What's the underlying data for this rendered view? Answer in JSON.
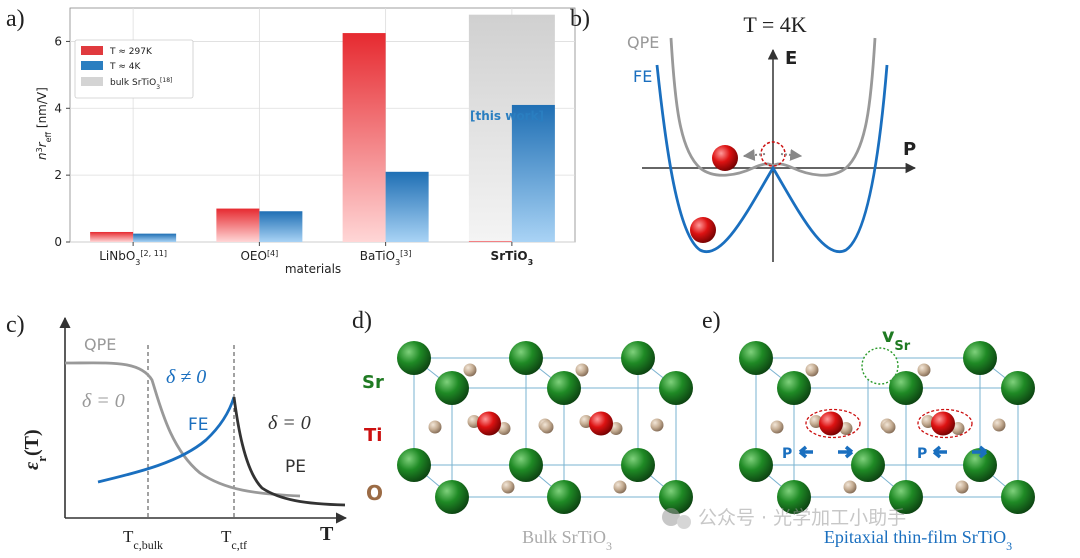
{
  "colors": {
    "red": "#e8222c",
    "blue": "#1f77c4",
    "gray": "#999999",
    "dark": "#333333",
    "sr_green": "#1f7a22",
    "ti_red": "#cc1010",
    "o_brown": "#9b6b45",
    "lattice_line": "#7ab3d0",
    "bar_red": "#e03a3e",
    "bar_blue": "#2a7ec0",
    "bar_gray": "#d4d4d4",
    "this_work": "#2a7ec0"
  },
  "panel_a": {
    "letter": "a)",
    "chart_data": {
      "type": "bar",
      "categories": [
        "LiNbO3[2,11]",
        "OEO[4]",
        "BaTiO3[3]",
        "SrTiO3"
      ],
      "category_labels": [
        {
          "base": "LiNbO",
          "sub": "3",
          "sup": "[2, 11]"
        },
        {
          "base": "OEO",
          "sub": "",
          "sup": "[4]"
        },
        {
          "base": "BaTiO",
          "sub": "3",
          "sup": "[3]"
        },
        {
          "base": "SrTiO",
          "sub": "3",
          "sup": ""
        }
      ],
      "series": [
        {
          "name": "T ≈ 297K",
          "values": [
            0.3,
            1.0,
            6.25,
            0.03
          ]
        },
        {
          "name": "T ≈ 4K",
          "values": [
            0.25,
            0.92,
            2.1,
            4.1
          ]
        },
        {
          "name": "bulk SrTiO3[18]",
          "values": [
            null,
            null,
            null,
            6.8
          ]
        }
      ],
      "ylim": [
        0,
        7.0
      ],
      "yticks": [
        0,
        2,
        4,
        6
      ],
      "ylabel": {
        "n": "n",
        "cube": "3",
        "r": "r",
        "sub": "eff",
        "unit": " [nm/V]"
      },
      "xlabel": "materials",
      "legend": [
        {
          "label": "T ≈ 297K",
          "sub": "",
          "sup": ""
        },
        {
          "label": "T ≈ 4K",
          "sub": "",
          "sup": ""
        },
        {
          "label": "bulk SrTiO",
          "sub": "3",
          "sup": "[18]"
        }
      ],
      "annotation": "[this work]"
    }
  },
  "panel_b": {
    "letter": "b)",
    "title": "T = 4K",
    "axis_e": "E",
    "axis_p": "P",
    "label_qpe": "QPE",
    "label_fe": "FE"
  },
  "panel_c": {
    "letter": "c)",
    "ylabel": {
      "eps": "ε",
      "sub": "r",
      "arg": "(T)"
    },
    "xlabel": "T",
    "label_qpe": "QPE",
    "label_fe": "FE",
    "label_pe": "PE",
    "delta_zero_left": "δ = 0",
    "delta_nonzero": "δ ≠ 0",
    "delta_zero_right": "δ = 0",
    "tick_bulk": {
      "base": "T",
      "sub": "c,bulk"
    },
    "tick_tf": {
      "base": "T",
      "sub": "c,tf"
    }
  },
  "panel_d": {
    "letter": "d)",
    "legend_sr": "Sr",
    "legend_ti": "Ti",
    "legend_o": "O",
    "caption": {
      "base": "Bulk SrTiO",
      "sub": "3"
    }
  },
  "panel_e": {
    "letter": "e)",
    "vacancy": {
      "base": "v",
      "sub": "Sr"
    },
    "p_label": "P",
    "caption": {
      "base": "Epitaxial thin-film SrTiO",
      "sub": "3"
    }
  },
  "watermark": "公众号 · 光学加工小助手"
}
